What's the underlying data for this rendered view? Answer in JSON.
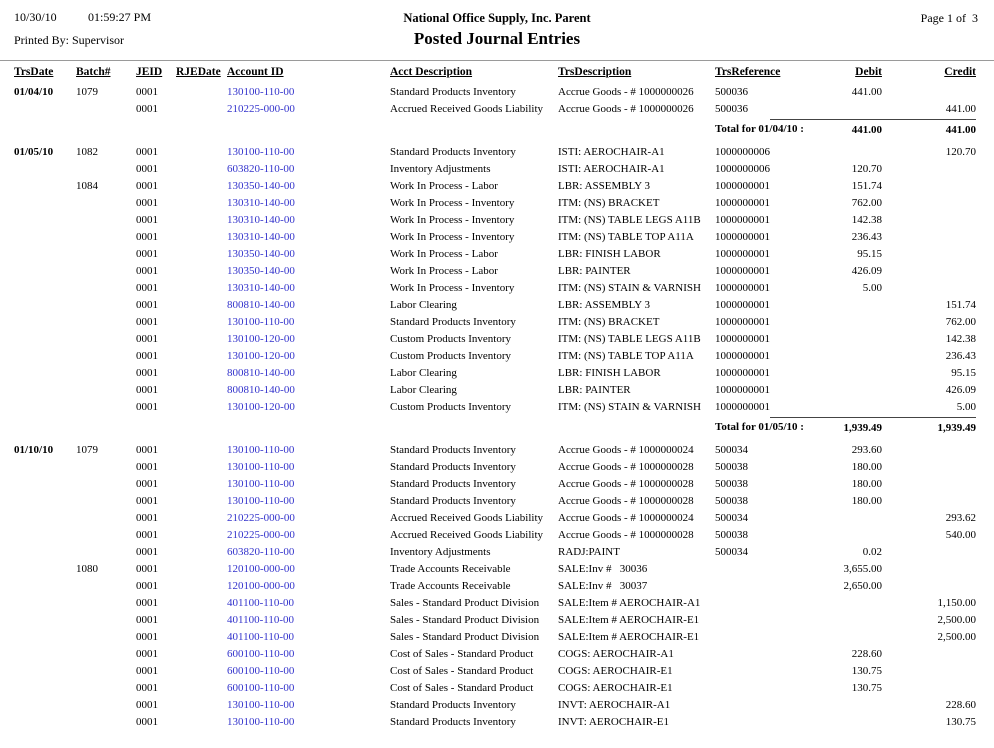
{
  "colors": {
    "account_link": "#3333cc"
  },
  "page": {
    "print_date": "10/30/10",
    "print_time": "01:59:27 PM",
    "printed_by": "Printed By: Supervisor",
    "company": "National Office Supply, Inc. Parent",
    "title": "Posted Journal Entries",
    "page_info": "Page 1 of  3"
  },
  "table": {
    "headers": [
      "TrsDate",
      "Batch#",
      "JEID",
      "RJEDate",
      "Account ID",
      "Acct Description",
      "TrsDescription",
      "TrsReference",
      "Debit",
      "Credit"
    ],
    "rows": [
      {
        "t": "e",
        "date": "01/04/10",
        "batch": "1079",
        "jeid": "0001",
        "rje": "",
        "acct": "130100-110-00",
        "adesc": "Standard Products Inventory",
        "tdesc": "Accrue Goods - # 1000000026",
        "tref": "500036",
        "debit": "441.00",
        "credit": ""
      },
      {
        "t": "e",
        "date": "",
        "batch": "",
        "jeid": "0001",
        "rje": "",
        "acct": "210225-000-00",
        "adesc": "Accrued Received Goods Liability",
        "tdesc": "Accrue Goods - # 1000000026",
        "tref": "500036",
        "debit": "",
        "credit": "441.00"
      },
      {
        "t": "total",
        "label": "Total for 01/04/10 :",
        "debit": "441.00",
        "credit": "441.00"
      },
      {
        "t": "gap"
      },
      {
        "t": "e",
        "date": "01/05/10",
        "batch": "1082",
        "jeid": "0001",
        "rje": "",
        "acct": "130100-110-00",
        "adesc": "Standard Products Inventory",
        "tdesc": "ISTI: AEROCHAIR-A1",
        "tref": "1000000006",
        "debit": "",
        "credit": "120.70"
      },
      {
        "t": "e",
        "date": "",
        "batch": "",
        "jeid": "0001",
        "rje": "",
        "acct": "603820-110-00",
        "adesc": "Inventory Adjustments",
        "tdesc": "ISTI: AEROCHAIR-A1",
        "tref": "1000000006",
        "debit": "120.70",
        "credit": ""
      },
      {
        "t": "e",
        "date": "",
        "batch": "1084",
        "jeid": "0001",
        "rje": "",
        "acct": "130350-140-00",
        "adesc": "Work In Process - Labor",
        "tdesc": "LBR: ASSEMBLY 3",
        "tref": "1000000001",
        "debit": "151.74",
        "credit": ""
      },
      {
        "t": "e",
        "date": "",
        "batch": "",
        "jeid": "0001",
        "rje": "",
        "acct": "130310-140-00",
        "adesc": "Work In Process - Inventory",
        "tdesc": "ITM: (NS) BRACKET",
        "tref": "1000000001",
        "debit": "762.00",
        "credit": ""
      },
      {
        "t": "e",
        "date": "",
        "batch": "",
        "jeid": "0001",
        "rje": "",
        "acct": "130310-140-00",
        "adesc": "Work In Process - Inventory",
        "tdesc": "ITM: (NS) TABLE LEGS A11B",
        "tref": "1000000001",
        "debit": "142.38",
        "credit": ""
      },
      {
        "t": "e",
        "date": "",
        "batch": "",
        "jeid": "0001",
        "rje": "",
        "acct": "130310-140-00",
        "adesc": "Work In Process - Inventory",
        "tdesc": "ITM: (NS) TABLE TOP A11A",
        "tref": "1000000001",
        "debit": "236.43",
        "credit": ""
      },
      {
        "t": "e",
        "date": "",
        "batch": "",
        "jeid": "0001",
        "rje": "",
        "acct": "130350-140-00",
        "adesc": "Work In Process - Labor",
        "tdesc": "LBR: FINISH LABOR",
        "tref": "1000000001",
        "debit": "95.15",
        "credit": ""
      },
      {
        "t": "e",
        "date": "",
        "batch": "",
        "jeid": "0001",
        "rje": "",
        "acct": "130350-140-00",
        "adesc": "Work In Process - Labor",
        "tdesc": "LBR: PAINTER",
        "tref": "1000000001",
        "debit": "426.09",
        "credit": ""
      },
      {
        "t": "e",
        "date": "",
        "batch": "",
        "jeid": "0001",
        "rje": "",
        "acct": "130310-140-00",
        "adesc": "Work In Process - Inventory",
        "tdesc": "ITM: (NS) STAIN & VARNISH",
        "tref": "1000000001",
        "debit": "5.00",
        "credit": ""
      },
      {
        "t": "e",
        "date": "",
        "batch": "",
        "jeid": "0001",
        "rje": "",
        "acct": "800810-140-00",
        "adesc": "Labor Clearing",
        "tdesc": "LBR: ASSEMBLY 3",
        "tref": "1000000001",
        "debit": "",
        "credit": "151.74"
      },
      {
        "t": "e",
        "date": "",
        "batch": "",
        "jeid": "0001",
        "rje": "",
        "acct": "130100-110-00",
        "adesc": "Standard Products Inventory",
        "tdesc": "ITM: (NS) BRACKET",
        "tref": "1000000001",
        "debit": "",
        "credit": "762.00"
      },
      {
        "t": "e",
        "date": "",
        "batch": "",
        "jeid": "0001",
        "rje": "",
        "acct": "130100-120-00",
        "adesc": "Custom Products Inventory",
        "tdesc": "ITM: (NS) TABLE LEGS A11B",
        "tref": "1000000001",
        "debit": "",
        "credit": "142.38"
      },
      {
        "t": "e",
        "date": "",
        "batch": "",
        "jeid": "0001",
        "rje": "",
        "acct": "130100-120-00",
        "adesc": "Custom Products Inventory",
        "tdesc": "ITM: (NS) TABLE TOP A11A",
        "tref": "1000000001",
        "debit": "",
        "credit": "236.43"
      },
      {
        "t": "e",
        "date": "",
        "batch": "",
        "jeid": "0001",
        "rje": "",
        "acct": "800810-140-00",
        "adesc": "Labor Clearing",
        "tdesc": "LBR: FINISH LABOR",
        "tref": "1000000001",
        "debit": "",
        "credit": "95.15"
      },
      {
        "t": "e",
        "date": "",
        "batch": "",
        "jeid": "0001",
        "rje": "",
        "acct": "800810-140-00",
        "adesc": "Labor Clearing",
        "tdesc": "LBR: PAINTER",
        "tref": "1000000001",
        "debit": "",
        "credit": "426.09"
      },
      {
        "t": "e",
        "date": "",
        "batch": "",
        "jeid": "0001",
        "rje": "",
        "acct": "130100-120-00",
        "adesc": "Custom Products Inventory",
        "tdesc": "ITM: (NS) STAIN & VARNISH",
        "tref": "1000000001",
        "debit": "",
        "credit": "5.00"
      },
      {
        "t": "total",
        "label": "Total for 01/05/10 :",
        "debit": "1,939.49",
        "credit": "1,939.49"
      },
      {
        "t": "gap"
      },
      {
        "t": "e",
        "date": "01/10/10",
        "batch": "1079",
        "jeid": "0001",
        "rje": "",
        "acct": "130100-110-00",
        "adesc": "Standard Products Inventory",
        "tdesc": "Accrue Goods - # 1000000024",
        "tref": "500034",
        "debit": "293.60",
        "credit": ""
      },
      {
        "t": "e",
        "date": "",
        "batch": "",
        "jeid": "0001",
        "rje": "",
        "acct": "130100-110-00",
        "adesc": "Standard Products Inventory",
        "tdesc": "Accrue Goods - # 1000000028",
        "tref": "500038",
        "debit": "180.00",
        "credit": ""
      },
      {
        "t": "e",
        "date": "",
        "batch": "",
        "jeid": "0001",
        "rje": "",
        "acct": "130100-110-00",
        "adesc": "Standard Products Inventory",
        "tdesc": "Accrue Goods - # 1000000028",
        "tref": "500038",
        "debit": "180.00",
        "credit": ""
      },
      {
        "t": "e",
        "date": "",
        "batch": "",
        "jeid": "0001",
        "rje": "",
        "acct": "130100-110-00",
        "adesc": "Standard Products Inventory",
        "tdesc": "Accrue Goods - # 1000000028",
        "tref": "500038",
        "debit": "180.00",
        "credit": ""
      },
      {
        "t": "e",
        "date": "",
        "batch": "",
        "jeid": "0001",
        "rje": "",
        "acct": "210225-000-00",
        "adesc": "Accrued Received Goods Liability",
        "tdesc": "Accrue Goods - # 1000000024",
        "tref": "500034",
        "debit": "",
        "credit": "293.62"
      },
      {
        "t": "e",
        "date": "",
        "batch": "",
        "jeid": "0001",
        "rje": "",
        "acct": "210225-000-00",
        "adesc": "Accrued Received Goods Liability",
        "tdesc": "Accrue Goods - # 1000000028",
        "tref": "500038",
        "debit": "",
        "credit": "540.00"
      },
      {
        "t": "e",
        "date": "",
        "batch": "",
        "jeid": "0001",
        "rje": "",
        "acct": "603820-110-00",
        "adesc": "Inventory Adjustments",
        "tdesc": "RADJ:PAINT",
        "tref": "500034",
        "debit": "0.02",
        "credit": ""
      },
      {
        "t": "e",
        "date": "",
        "batch": "1080",
        "jeid": "0001",
        "rje": "",
        "acct": "120100-000-00",
        "adesc": "Trade Accounts Receivable",
        "tdesc": "SALE:Inv #   30036",
        "tref": "",
        "debit": "3,655.00",
        "credit": ""
      },
      {
        "t": "e",
        "date": "",
        "batch": "",
        "jeid": "0001",
        "rje": "",
        "acct": "120100-000-00",
        "adesc": "Trade Accounts Receivable",
        "tdesc": "SALE:Inv #   30037",
        "tref": "",
        "debit": "2,650.00",
        "credit": ""
      },
      {
        "t": "e",
        "date": "",
        "batch": "",
        "jeid": "0001",
        "rje": "",
        "acct": "401100-110-00",
        "adesc": "Sales - Standard Product Division",
        "tdesc": "SALE:Item # AEROCHAIR-A1",
        "tref": "",
        "debit": "",
        "credit": "1,150.00"
      },
      {
        "t": "e",
        "date": "",
        "batch": "",
        "jeid": "0001",
        "rje": "",
        "acct": "401100-110-00",
        "adesc": "Sales - Standard Product Division",
        "tdesc": "SALE:Item # AEROCHAIR-E1",
        "tref": "",
        "debit": "",
        "credit": "2,500.00"
      },
      {
        "t": "e",
        "date": "",
        "batch": "",
        "jeid": "0001",
        "rje": "",
        "acct": "401100-110-00",
        "adesc": "Sales - Standard Product Division",
        "tdesc": "SALE:Item # AEROCHAIR-E1",
        "tref": "",
        "debit": "",
        "credit": "2,500.00"
      },
      {
        "t": "e",
        "date": "",
        "batch": "",
        "jeid": "0001",
        "rje": "",
        "acct": "600100-110-00",
        "adesc": "Cost of Sales - Standard Product",
        "tdesc": "COGS: AEROCHAIR-A1",
        "tref": "",
        "debit": "228.60",
        "credit": ""
      },
      {
        "t": "e",
        "date": "",
        "batch": "",
        "jeid": "0001",
        "rje": "",
        "acct": "600100-110-00",
        "adesc": "Cost of Sales - Standard Product",
        "tdesc": "COGS: AEROCHAIR-E1",
        "tref": "",
        "debit": "130.75",
        "credit": ""
      },
      {
        "t": "e",
        "date": "",
        "batch": "",
        "jeid": "0001",
        "rje": "",
        "acct": "600100-110-00",
        "adesc": "Cost of Sales - Standard Product",
        "tdesc": "COGS: AEROCHAIR-E1",
        "tref": "",
        "debit": "130.75",
        "credit": ""
      },
      {
        "t": "e",
        "date": "",
        "batch": "",
        "jeid": "0001",
        "rje": "",
        "acct": "130100-110-00",
        "adesc": "Standard Products Inventory",
        "tdesc": "INVT: AEROCHAIR-A1",
        "tref": "",
        "debit": "",
        "credit": "228.60"
      },
      {
        "t": "e",
        "date": "",
        "batch": "",
        "jeid": "0001",
        "rje": "",
        "acct": "130100-110-00",
        "adesc": "Standard Products Inventory",
        "tdesc": "INVT: AEROCHAIR-E1",
        "tref": "",
        "debit": "",
        "credit": "130.75"
      }
    ]
  }
}
